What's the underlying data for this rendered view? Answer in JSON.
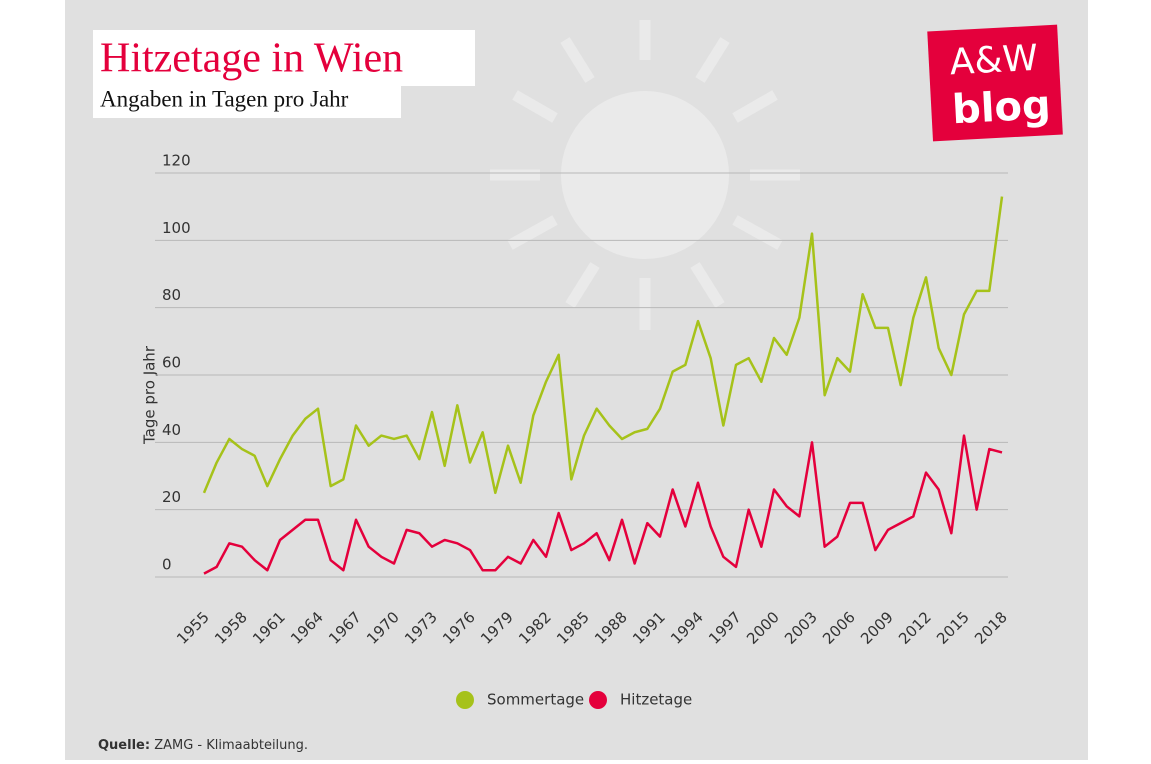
{
  "chart_data": {
    "type": "line",
    "title": "Hitzetage in Wien",
    "subtitle": "Angaben in Tagen pro Jahr",
    "y_label": "Tage pro Jahr",
    "x": [
      1955,
      1956,
      1957,
      1958,
      1959,
      1960,
      1961,
      1962,
      1963,
      1964,
      1965,
      1966,
      1967,
      1968,
      1969,
      1970,
      1971,
      1972,
      1973,
      1974,
      1975,
      1976,
      1977,
      1978,
      1979,
      1980,
      1981,
      1982,
      1983,
      1984,
      1985,
      1986,
      1987,
      1988,
      1989,
      1990,
      1991,
      1992,
      1993,
      1994,
      1995,
      1996,
      1997,
      1998,
      1999,
      2000,
      2001,
      2002,
      2003,
      2004,
      2005,
      2006,
      2007,
      2008,
      2009,
      2010,
      2011,
      2012,
      2013,
      2014,
      2015,
      2016,
      2017,
      2018
    ],
    "series": [
      {
        "name": "Sommertage",
        "color": "#a6c21a",
        "values": [
          25,
          34,
          41,
          38,
          36,
          27,
          35,
          42,
          47,
          50,
          27,
          29,
          45,
          39,
          42,
          41,
          42,
          35,
          49,
          33,
          51,
          34,
          43,
          25,
          39,
          28,
          48,
          58,
          66,
          29,
          42,
          50,
          45,
          41,
          43,
          44,
          50,
          61,
          63,
          76,
          65,
          45,
          63,
          65,
          58,
          71,
          66,
          77,
          102,
          54,
          65,
          61,
          84,
          74,
          74,
          57,
          77,
          89,
          68,
          60,
          78,
          85,
          85,
          113
        ]
      },
      {
        "name": "Hitzetage",
        "color": "#e4003c",
        "values": [
          1,
          3,
          10,
          9,
          5,
          2,
          11,
          14,
          17,
          17,
          5,
          2,
          17,
          9,
          6,
          4,
          14,
          13,
          9,
          11,
          10,
          8,
          2,
          2,
          6,
          4,
          11,
          6,
          19,
          8,
          10,
          13,
          5,
          17,
          4,
          16,
          12,
          26,
          15,
          28,
          15,
          6,
          3,
          20,
          9,
          26,
          21,
          18,
          40,
          9,
          12,
          22,
          22,
          8,
          14,
          16,
          18,
          31,
          26,
          13,
          42,
          20,
          38,
          37
        ]
      }
    ],
    "xlim": [
      1955,
      2018
    ],
    "xticks": [
      1955,
      1958,
      1961,
      1964,
      1967,
      1970,
      1973,
      1976,
      1979,
      1982,
      1985,
      1988,
      1991,
      1994,
      1997,
      2000,
      2003,
      2006,
      2009,
      2012,
      2015,
      2018
    ],
    "ylim": [
      0,
      120
    ],
    "yticks": [
      0,
      20,
      40,
      60,
      80,
      100,
      120
    ],
    "grid": true,
    "legend": "bottom",
    "source_label": "Quelle:",
    "source": "ZAMG - Klimaabteilung."
  },
  "logo": {
    "line1": "A&W",
    "line2": "blog"
  }
}
